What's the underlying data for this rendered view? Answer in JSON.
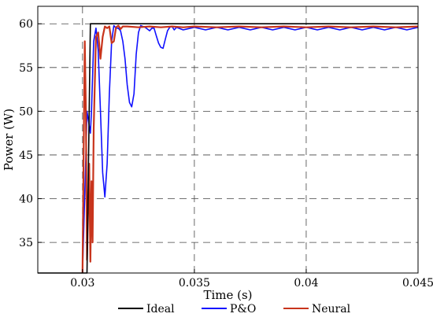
{
  "chart_data": {
    "type": "line",
    "title": "",
    "xlabel": "Time (s)",
    "ylabel": "Power (W)",
    "xlim": [
      0.028,
      0.045
    ],
    "ylim": [
      31.5,
      62
    ],
    "grid": true,
    "grid_style": "dashed",
    "legend_position": "bottom",
    "x_ticks": [
      0.03,
      0.035,
      0.04,
      0.045
    ],
    "x_tick_labels": [
      "0.03",
      "0.035",
      "0.04",
      "0.045"
    ],
    "y_ticks": [
      35,
      40,
      45,
      50,
      55,
      60
    ],
    "y_tick_labels": [
      "35",
      "40",
      "45",
      "50",
      "55",
      "60"
    ],
    "series": [
      {
        "name": "Ideal",
        "color": "#000000",
        "x": [
          0.028,
          0.0302,
          0.03035,
          0.045
        ],
        "y": [
          31.5,
          31.5,
          60.0,
          60.0
        ]
      },
      {
        "name": "P&O",
        "color": "#1010ff",
        "x": [
          0.03,
          0.03015,
          0.0302,
          0.03035,
          0.0304,
          0.0305,
          0.0306,
          0.0307,
          0.0308,
          0.0309,
          0.031,
          0.0311,
          0.0312,
          0.0313,
          0.0314,
          0.0315,
          0.0316,
          0.0317,
          0.0318,
          0.0319,
          0.032,
          0.0321,
          0.0322,
          0.0323,
          0.0324,
          0.0325,
          0.0326,
          0.0327,
          0.0328,
          0.0329,
          0.033,
          0.0331,
          0.0332,
          0.0333,
          0.0334,
          0.0335,
          0.0336,
          0.0337,
          0.0338,
          0.0339,
          0.034,
          0.0341,
          0.0342,
          0.0345,
          0.035,
          0.0355,
          0.036,
          0.0365,
          0.037,
          0.0375,
          0.038,
          0.0385,
          0.039,
          0.0395,
          0.04,
          0.0405,
          0.041,
          0.0415,
          0.042,
          0.0425,
          0.043,
          0.0435,
          0.044,
          0.0445,
          0.045
        ],
        "y": [
          31.5,
          45.0,
          50.0,
          47.5,
          50.0,
          58.0,
          59.5,
          57.0,
          50.0,
          43.0,
          40.2,
          44.0,
          52.0,
          58.0,
          59.8,
          59.5,
          59.5,
          59.2,
          58.0,
          56.0,
          53.0,
          51.0,
          50.5,
          52.0,
          56.5,
          59.0,
          59.8,
          59.7,
          59.6,
          59.4,
          59.2,
          59.5,
          59.5,
          58.6,
          57.8,
          57.3,
          57.2,
          58.2,
          59.2,
          59.6,
          59.7,
          59.3,
          59.6,
          59.3,
          59.6,
          59.3,
          59.6,
          59.3,
          59.6,
          59.3,
          59.6,
          59.3,
          59.6,
          59.3,
          59.6,
          59.3,
          59.6,
          59.3,
          59.6,
          59.3,
          59.6,
          59.3,
          59.6,
          59.3,
          59.6
        ]
      },
      {
        "name": "Neural",
        "color": "#c8341c",
        "x": [
          0.03,
          0.03005,
          0.0301,
          0.03015,
          0.0302,
          0.0303,
          0.03035,
          0.0304,
          0.03045,
          0.0305,
          0.0306,
          0.0307,
          0.0308,
          0.0309,
          0.031,
          0.0311,
          0.0312,
          0.0313,
          0.0314,
          0.0315,
          0.0316,
          0.0317,
          0.0318,
          0.032,
          0.0325,
          0.033,
          0.0335,
          0.034,
          0.0345,
          0.035,
          0.036,
          0.037,
          0.038,
          0.039,
          0.04,
          0.041,
          0.042,
          0.043,
          0.044,
          0.045
        ],
        "y": [
          31.5,
          45.0,
          58.0,
          50.0,
          33.0,
          44.0,
          32.8,
          42.0,
          35.0,
          48.0,
          58.5,
          59.0,
          56.0,
          58.5,
          59.7,
          59.5,
          59.7,
          57.8,
          58.0,
          59.6,
          59.8,
          59.4,
          59.7,
          59.7,
          59.6,
          59.7,
          59.6,
          59.7,
          59.6,
          59.7,
          59.6,
          59.7,
          59.6,
          59.7,
          59.6,
          59.7,
          59.6,
          59.7,
          59.6,
          59.7
        ]
      }
    ],
    "legend": [
      {
        "name": "Ideal",
        "color": "#000000"
      },
      {
        "name": "P&O",
        "color": "#1010ff"
      },
      {
        "name": "Neural",
        "color": "#c8341c"
      }
    ]
  }
}
